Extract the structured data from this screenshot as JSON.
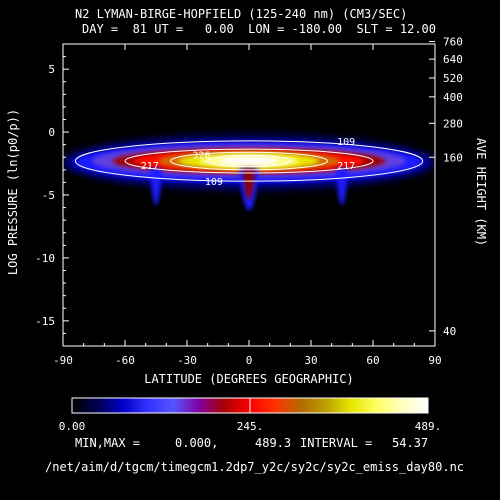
{
  "header": {
    "title": "N2 LYMAN-BIRGE-HOPFIELD (125-240 nm) (CM3/SEC)",
    "subtitle": "DAY =  81 UT =   0.00  LON = -180.00  SLT = 12.00"
  },
  "chart_data": {
    "type": "heatmap",
    "title": "N2 LYMAN-BIRGE-HOPFIELD (125-240 nm) (CM3/SEC)",
    "xlabel": "LATITUDE (DEGREES GEOGRAPHIC)",
    "ylabel": "LOG PRESSURE (ln(p0/p))",
    "y2label": "AVE HEIGHT (KM)",
    "xlim": [
      -90,
      90
    ],
    "ylim": [
      -17,
      7
    ],
    "x_ticks": [
      -90,
      -60,
      -30,
      0,
      30,
      60,
      90
    ],
    "y_ticks": [
      -15,
      -10,
      -5,
      0,
      5
    ],
    "y2_ticks": [
      {
        "label": "760",
        "logp": 7.2
      },
      {
        "label": "640",
        "logp": 5.8
      },
      {
        "label": "520",
        "logp": 4.3
      },
      {
        "label": "400",
        "logp": 2.8
      },
      {
        "label": "280",
        "logp": 0.7
      },
      {
        "label": "160",
        "logp": -2.0
      },
      {
        "label": "40",
        "logp": -15.8
      }
    ],
    "contour_labels": [
      {
        "text": "109",
        "x": 47,
        "y": -0.7
      },
      {
        "text": "109",
        "x": -17,
        "y": -3.9
      },
      {
        "text": "217",
        "x": -48,
        "y": -2.6
      },
      {
        "text": "217",
        "x": 47,
        "y": -2.6
      },
      {
        "text": "326",
        "x": -23,
        "y": -1.8
      }
    ],
    "emission_band": {
      "x_range": [
        -90,
        90
      ],
      "peak_logp": -2.3,
      "core": {
        "x_half_width": 30,
        "logp_range": [
          -3.3,
          -1.5
        ],
        "value": 489.3
      },
      "lobes": [
        {
          "x": -45,
          "logp_bottom": -5.8
        },
        {
          "x": 0,
          "logp_bottom": -6.2
        },
        {
          "x": 45,
          "logp_bottom": -5.8
        }
      ]
    },
    "colorbar": {
      "min_label": "0.00",
      "mid_label": "245.",
      "max_label": "489.",
      "colors": [
        "#000000",
        "#000050",
        "#0000c8",
        "#3333ff",
        "#5555ff",
        "#8000a0",
        "#aa0000",
        "#ff0000",
        "#ff3300",
        "#b36b00",
        "#bba000",
        "#e8e800",
        "#ffff66",
        "#ffffc0",
        "#ffffff"
      ]
    },
    "min": "0.000",
    "max": "489.3",
    "interval": "54.37"
  },
  "footer": {
    "minmax_label": "MIN,MAX =",
    "min_value": "0.000,",
    "max_value": "489.3",
    "interval_label": "INTERVAL =",
    "interval_value": "54.37",
    "filepath": "/net/aim/d/tgcm/timegcm1.2dp7_y2c/sy2c/sy2c_emiss_day80.nc"
  }
}
